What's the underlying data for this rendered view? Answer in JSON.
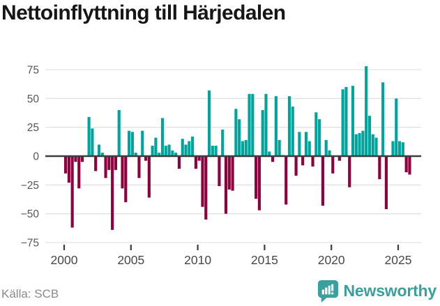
{
  "title": "Nettoinflyttning till Härjedalen",
  "footer": {
    "source": "Källa: SCB",
    "brand": "Newsworthy"
  },
  "colors": {
    "positive": "#00a49d",
    "negative": "#8e013f",
    "grid": "#e3e3e3",
    "zero_line": "#3c3c3c",
    "y_axis_text": "#565656",
    "x_axis_text": "#474747",
    "title_text": "#161616",
    "source_text": "#8a8a8a",
    "brand": "#3aa09b"
  },
  "chart_data": {
    "type": "bar",
    "title": "Nettoinflyttning till Härjedalen",
    "xlabel": "",
    "ylabel": "",
    "ylim": [
      -75,
      75
    ],
    "yticks": [
      75,
      50,
      25,
      0,
      -25,
      -50,
      -75
    ],
    "xticks": [
      "2000",
      "2005",
      "2010",
      "2015",
      "2020",
      "2025"
    ],
    "grid": true,
    "legend": false,
    "x_unit": "quarter",
    "categories": [
      "2000 Q1",
      "2000 Q2",
      "2000 Q3",
      "2000 Q4",
      "2001 Q1",
      "2001 Q2",
      "2001 Q3",
      "2001 Q4",
      "2002 Q1",
      "2002 Q2",
      "2002 Q3",
      "2002 Q4",
      "2003 Q1",
      "2003 Q2",
      "2003 Q3",
      "2003 Q4",
      "2004 Q1",
      "2004 Q2",
      "2004 Q3",
      "2004 Q4",
      "2005 Q1",
      "2005 Q2",
      "2005 Q3",
      "2005 Q4",
      "2006 Q1",
      "2006 Q2",
      "2006 Q3",
      "2006 Q4",
      "2007 Q1",
      "2007 Q2",
      "2007 Q3",
      "2007 Q4",
      "2008 Q1",
      "2008 Q2",
      "2008 Q3",
      "2008 Q4",
      "2009 Q1",
      "2009 Q2",
      "2009 Q3",
      "2009 Q4",
      "2010 Q1",
      "2010 Q2",
      "2010 Q3",
      "2010 Q4",
      "2011 Q1",
      "2011 Q2",
      "2011 Q3",
      "2011 Q4",
      "2012 Q1",
      "2012 Q2",
      "2012 Q3",
      "2012 Q4",
      "2013 Q1",
      "2013 Q2",
      "2013 Q3",
      "2013 Q4",
      "2014 Q1",
      "2014 Q2",
      "2014 Q3",
      "2014 Q4",
      "2015 Q1",
      "2015 Q2",
      "2015 Q3",
      "2015 Q4",
      "2016 Q1",
      "2016 Q2",
      "2016 Q3",
      "2016 Q4",
      "2017 Q1",
      "2017 Q2",
      "2017 Q3",
      "2017 Q4",
      "2018 Q1",
      "2018 Q2",
      "2018 Q3",
      "2018 Q4",
      "2019 Q1",
      "2019 Q2",
      "2019 Q3",
      "2019 Q4",
      "2020 Q1",
      "2020 Q2",
      "2020 Q3",
      "2020 Q4",
      "2021 Q1",
      "2021 Q2",
      "2021 Q3",
      "2021 Q4",
      "2022 Q1",
      "2022 Q2",
      "2022 Q3",
      "2022 Q4",
      "2023 Q1",
      "2023 Q2",
      "2023 Q3",
      "2023 Q4",
      "2024 Q1",
      "2024 Q2",
      "2024 Q3",
      "2024 Q4",
      "2025 Q1",
      "2025 Q2",
      "2025 Q3",
      "2025 Q4"
    ],
    "values": [
      -15,
      -23,
      -62,
      -5,
      -28,
      -5,
      0,
      34,
      24,
      -13,
      10,
      3,
      -19,
      -12,
      -64,
      -12,
      40,
      -28,
      -40,
      22,
      21,
      3,
      -19,
      22,
      -4,
      -36,
      9,
      16,
      3,
      33,
      9,
      10,
      5,
      3,
      -11,
      15,
      10,
      13,
      17,
      -11,
      -4,
      -44,
      -55,
      57,
      9,
      9,
      -26,
      23,
      -50,
      -29,
      -30,
      41,
      32,
      13,
      14,
      54,
      54,
      -37,
      -47,
      40,
      54,
      4,
      -5,
      52,
      14,
      1,
      -42,
      52,
      43,
      -17,
      21,
      -8,
      21,
      13,
      -9,
      38,
      32,
      -43,
      14,
      5,
      -15,
      0,
      -4,
      58,
      60,
      -27,
      61,
      19,
      20,
      22,
      78,
      35,
      19,
      16,
      -20,
      64,
      -46,
      0,
      13,
      50,
      13,
      12,
      -14,
      -16
    ]
  }
}
